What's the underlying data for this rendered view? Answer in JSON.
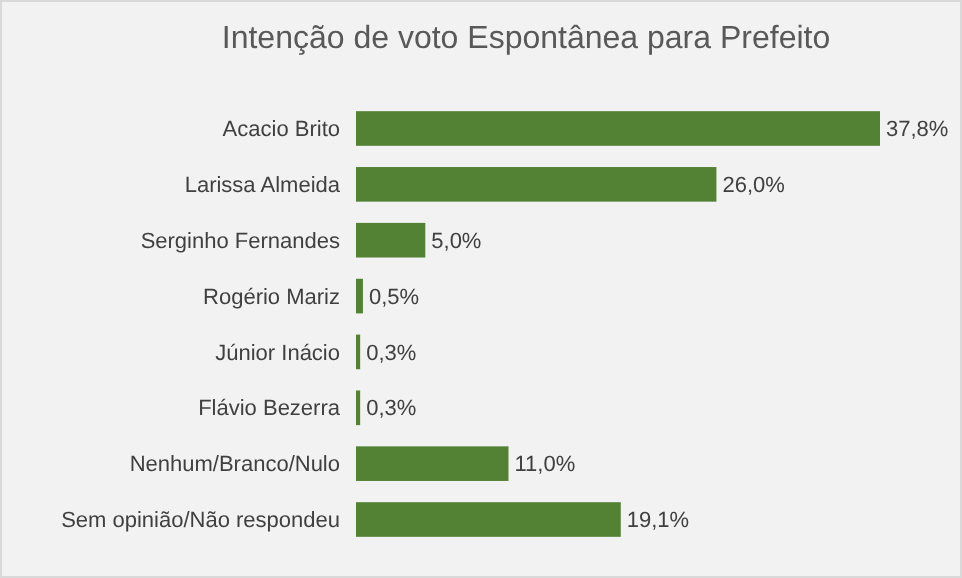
{
  "chart_data": {
    "type": "bar",
    "orientation": "horizontal",
    "title": "Intenção de voto Espontânea para Prefeito",
    "categories": [
      "Acacio Brito",
      "Larissa Almeida",
      "Serginho Fernandes",
      "Rogério Mariz",
      "Júnior Inácio",
      "Flávio Bezerra",
      "Nenhum/Branco/Nulo",
      "Sem opinião/Não respondeu"
    ],
    "values": [
      37.8,
      26.0,
      5.0,
      0.5,
      0.3,
      0.3,
      11.0,
      19.1
    ],
    "value_labels": [
      "37,8%",
      "26,0%",
      "5,0%",
      "0,5%",
      "0,3%",
      "0,3%",
      "11,0%",
      "19,1%"
    ],
    "color": "#548235"
  }
}
